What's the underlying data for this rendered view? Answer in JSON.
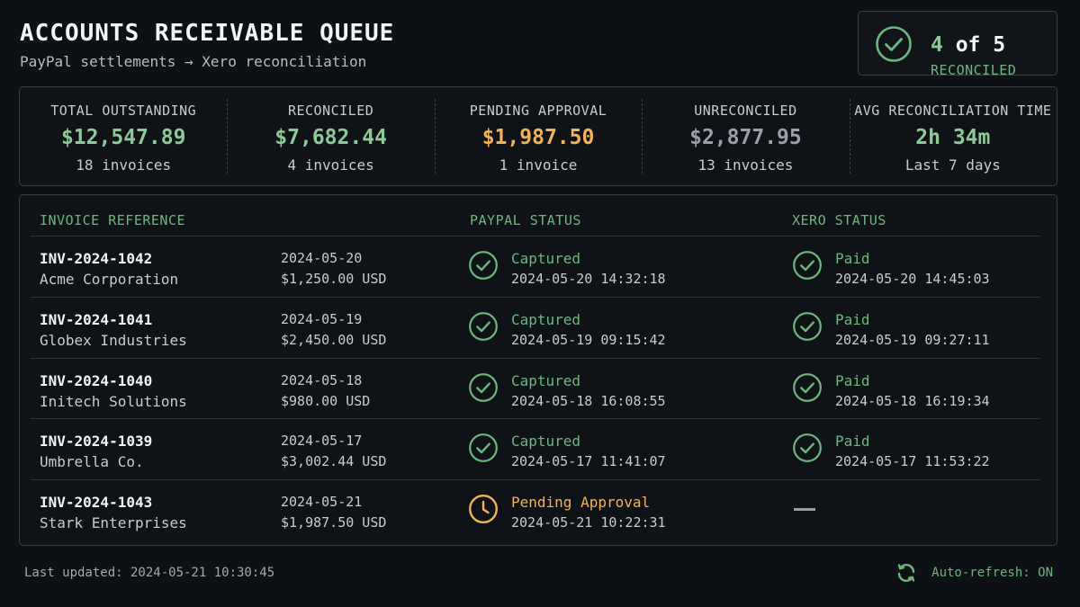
{
  "header": {
    "title": "ACCOUNTS RECEIVABLE QUEUE",
    "subtitle": "PayPal settlements → Xero reconciliation"
  },
  "summary": {
    "count_num": "4",
    "count_rest": " of 5",
    "label": "RECONCILED",
    "icon": "check-circle-icon"
  },
  "stats": [
    {
      "label": "TOTAL OUTSTANDING",
      "value": "$12,547.89",
      "sub": "18 invoices",
      "color": "#8ec99a"
    },
    {
      "label": "RECONCILED",
      "value": "$7,682.44",
      "sub": "4 invoices",
      "color": "#8ec99a"
    },
    {
      "label": "PENDING APPROVAL",
      "value": "$1,987.50",
      "sub": "1 invoice",
      "color": "#f2b358"
    },
    {
      "label": "UNRECONCILED",
      "value": "$2,877.95",
      "sub": "13 invoices",
      "color": "#9aa0a7"
    },
    {
      "label": "AVG RECONCILIATION TIME",
      "value": "2h 34m",
      "sub": "Last 7 days",
      "color": "#8ec99a"
    }
  ],
  "table": {
    "headers": {
      "invoice": "INVOICE REFERENCE",
      "paypal": "PAYPAL STATUS",
      "xero": "XERO STATUS"
    },
    "rows": [
      {
        "ref": "INV-2024-1042",
        "customer": "Acme Corporation",
        "date": "2024-05-20",
        "amount": "$1,250.00 USD",
        "paypal": {
          "status": "Captured",
          "time": "2024-05-20 14:32:18",
          "state": "ok"
        },
        "xero": {
          "status": "Paid",
          "time": "2024-05-20 14:45:03",
          "state": "ok"
        }
      },
      {
        "ref": "INV-2024-1041",
        "customer": "Globex Industries",
        "date": "2024-05-19",
        "amount": "$2,450.00 USD",
        "paypal": {
          "status": "Captured",
          "time": "2024-05-19 09:15:42",
          "state": "ok"
        },
        "xero": {
          "status": "Paid",
          "time": "2024-05-19 09:27:11",
          "state": "ok"
        }
      },
      {
        "ref": "INV-2024-1040",
        "customer": "Initech Solutions",
        "date": "2024-05-18",
        "amount": "$980.00 USD",
        "paypal": {
          "status": "Captured",
          "time": "2024-05-18 16:08:55",
          "state": "ok"
        },
        "xero": {
          "status": "Paid",
          "time": "2024-05-18 16:19:34",
          "state": "ok"
        }
      },
      {
        "ref": "INV-2024-1039",
        "customer": "Umbrella Co.",
        "date": "2024-05-17",
        "amount": "$3,002.44 USD",
        "paypal": {
          "status": "Captured",
          "time": "2024-05-17 11:41:07",
          "state": "ok"
        },
        "xero": {
          "status": "Paid",
          "time": "2024-05-17 11:53:22",
          "state": "ok"
        }
      },
      {
        "ref": "INV-2024-1043",
        "customer": "Stark Enterprises",
        "date": "2024-05-21",
        "amount": "$1,987.50 USD",
        "paypal": {
          "status": "Pending Approval",
          "time": "2024-05-21 10:22:31",
          "state": "pending"
        },
        "xero": {
          "status": "",
          "time": "",
          "state": "none"
        }
      }
    ]
  },
  "footer": {
    "last_updated": "Last updated: 2024-05-21 10:30:45",
    "auto_refresh": "Auto-refresh: ON",
    "refresh_icon": "refresh-icon"
  },
  "colors": {
    "ok": "#6fb67e",
    "pending": "#f2b358",
    "muted": "#9aa0a7"
  }
}
